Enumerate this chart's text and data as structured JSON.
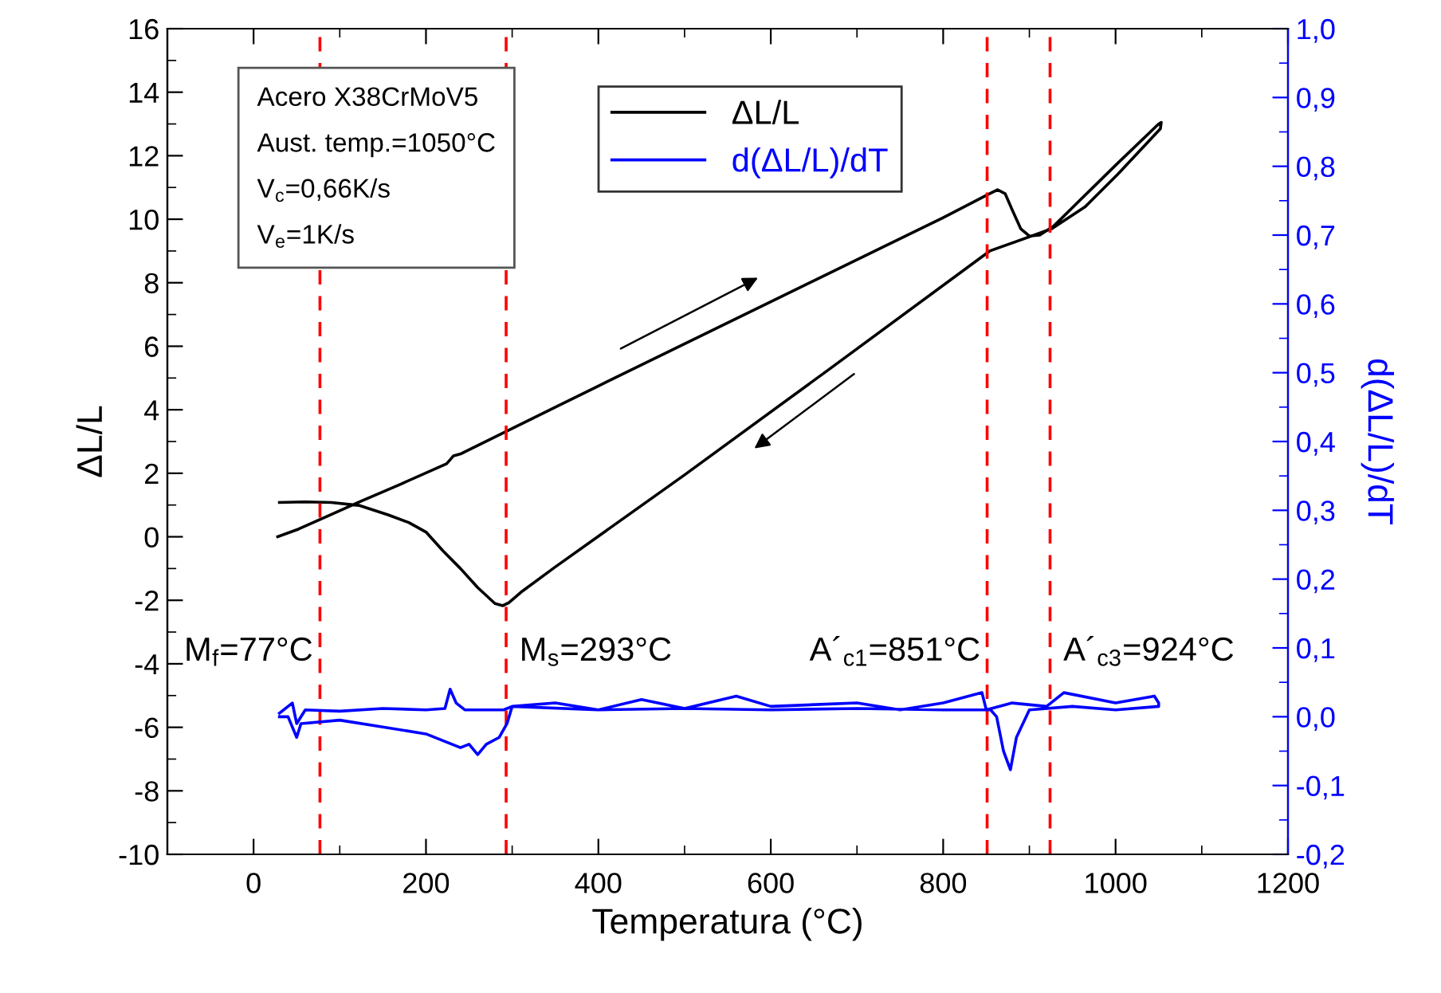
{
  "chart_data": {
    "type": "line",
    "xlabel": "Temperatura (°C)",
    "ylabel": "ΔL/L",
    "y2label": "d(ΔL/L)/dT",
    "xlim": [
      -100,
      1200
    ],
    "xticks": [
      0,
      200,
      400,
      600,
      800,
      1000,
      1200
    ],
    "ylim": [
      -10,
      16
    ],
    "yticks": [
      -10,
      -8,
      -6,
      -4,
      -2,
      0,
      2,
      4,
      6,
      8,
      10,
      12,
      14,
      16
    ],
    "y2lim": [
      -0.2,
      1.0
    ],
    "y2ticks": [
      {
        "value": -0.2,
        "label": "-0,2"
      },
      {
        "value": -0.1,
        "label": "-0,1"
      },
      {
        "value": 0.0,
        "label": "0,0"
      },
      {
        "value": 0.1,
        "label": "0,1"
      },
      {
        "value": 0.2,
        "label": "0,2"
      },
      {
        "value": 0.3,
        "label": "0,3"
      },
      {
        "value": 0.4,
        "label": "0,4"
      },
      {
        "value": 0.5,
        "label": "0,5"
      },
      {
        "value": 0.6,
        "label": "0,6"
      },
      {
        "value": 0.7,
        "label": "0,7"
      },
      {
        "value": 0.8,
        "label": "0,8"
      },
      {
        "value": 0.9,
        "label": "0,9"
      },
      {
        "value": 1.0,
        "label": "1,0"
      }
    ],
    "grid": false,
    "legend": "top",
    "marker": "none",
    "line_style": "solid",
    "series": [
      {
        "name": "ΔL/L",
        "color": "#000000",
        "x": [
          28,
          52,
          90,
          122,
          170,
          224,
          232,
          241,
          400,
          600,
          800,
          850,
          863,
          872,
          880,
          890,
          900,
          912,
          928,
          1000,
          1050,
          1053,
          1052,
          1033,
          1002,
          965,
          926,
          854,
          669,
          500,
          350,
          310,
          296,
          289,
          280,
          260,
          240,
          220,
          200,
          180,
          156,
          122,
          90,
          60,
          30
        ],
        "values": [
          0.0,
          0.24,
          0.7,
          1.09,
          1.65,
          2.3,
          2.55,
          2.62,
          4.75,
          7.4,
          10.05,
          10.75,
          10.93,
          10.8,
          10.3,
          9.7,
          9.47,
          9.5,
          9.78,
          11.7,
          13.0,
          13.05,
          12.85,
          12.3,
          11.4,
          10.4,
          9.7,
          9.0,
          5.3,
          1.95,
          -0.95,
          -1.75,
          -2.08,
          -2.17,
          -2.1,
          -1.6,
          -1.0,
          -0.45,
          0.15,
          0.45,
          0.69,
          0.99,
          1.08,
          1.1,
          1.08
        ]
      },
      {
        "name": "d(ΔL/L)/dT",
        "color": "#0000ff",
        "axis": "y2",
        "x": [
          30,
          45,
          50,
          60,
          100,
          150,
          200,
          222,
          228,
          235,
          245,
          290,
          300,
          350,
          400,
          450,
          500,
          560,
          600,
          700,
          750,
          800,
          845,
          850,
          880,
          920,
          940,
          1000,
          1045,
          1050,
          1050,
          1000,
          950,
          900,
          885,
          878,
          870,
          862,
          855,
          800,
          700,
          600,
          500,
          400,
          300,
          294,
          285,
          270,
          260,
          250,
          240,
          200,
          150,
          100,
          55,
          50,
          40,
          30
        ],
        "values": [
          0.005,
          0.02,
          -0.01,
          0.01,
          0.008,
          0.012,
          0.01,
          0.012,
          0.04,
          0.02,
          0.01,
          0.01,
          0.015,
          0.02,
          0.01,
          0.025,
          0.012,
          0.03,
          0.015,
          0.02,
          0.01,
          0.02,
          0.035,
          0.01,
          0.02,
          0.015,
          0.035,
          0.02,
          0.03,
          0.02,
          0.015,
          0.01,
          0.015,
          0.01,
          -0.03,
          -0.077,
          -0.05,
          0.0,
          0.01,
          0.01,
          0.012,
          0.01,
          0.012,
          0.01,
          0.015,
          -0.01,
          -0.03,
          -0.04,
          -0.055,
          -0.04,
          -0.045,
          -0.025,
          -0.015,
          -0.005,
          -0.01,
          -0.03,
          0.0,
          0.0
        ]
      }
    ],
    "ref_lines": [
      {
        "axis": "x",
        "value": 77,
        "color": "#ff0000",
        "line_style": "dashed",
        "label": "M$_{f}$=77°C"
      },
      {
        "axis": "x",
        "value": 293,
        "color": "#ff0000",
        "line_style": "dashed",
        "label": "M$_{s}$=293°C"
      },
      {
        "axis": "x",
        "value": 851,
        "color": "#ff0000",
        "line_style": "dashed",
        "label": "A´$_{c1}$=851°C"
      },
      {
        "axis": "x",
        "value": 924,
        "color": "#ff0000",
        "line_style": "dashed",
        "label": "A´$_{c3}$=924°C"
      }
    ],
    "annotations": [
      "Acero X38CrMoV5\nAust. temp.=1050°C\nV$_{c}$=0,66K/s\nV$_{e}$=1K/s"
    ]
  }
}
